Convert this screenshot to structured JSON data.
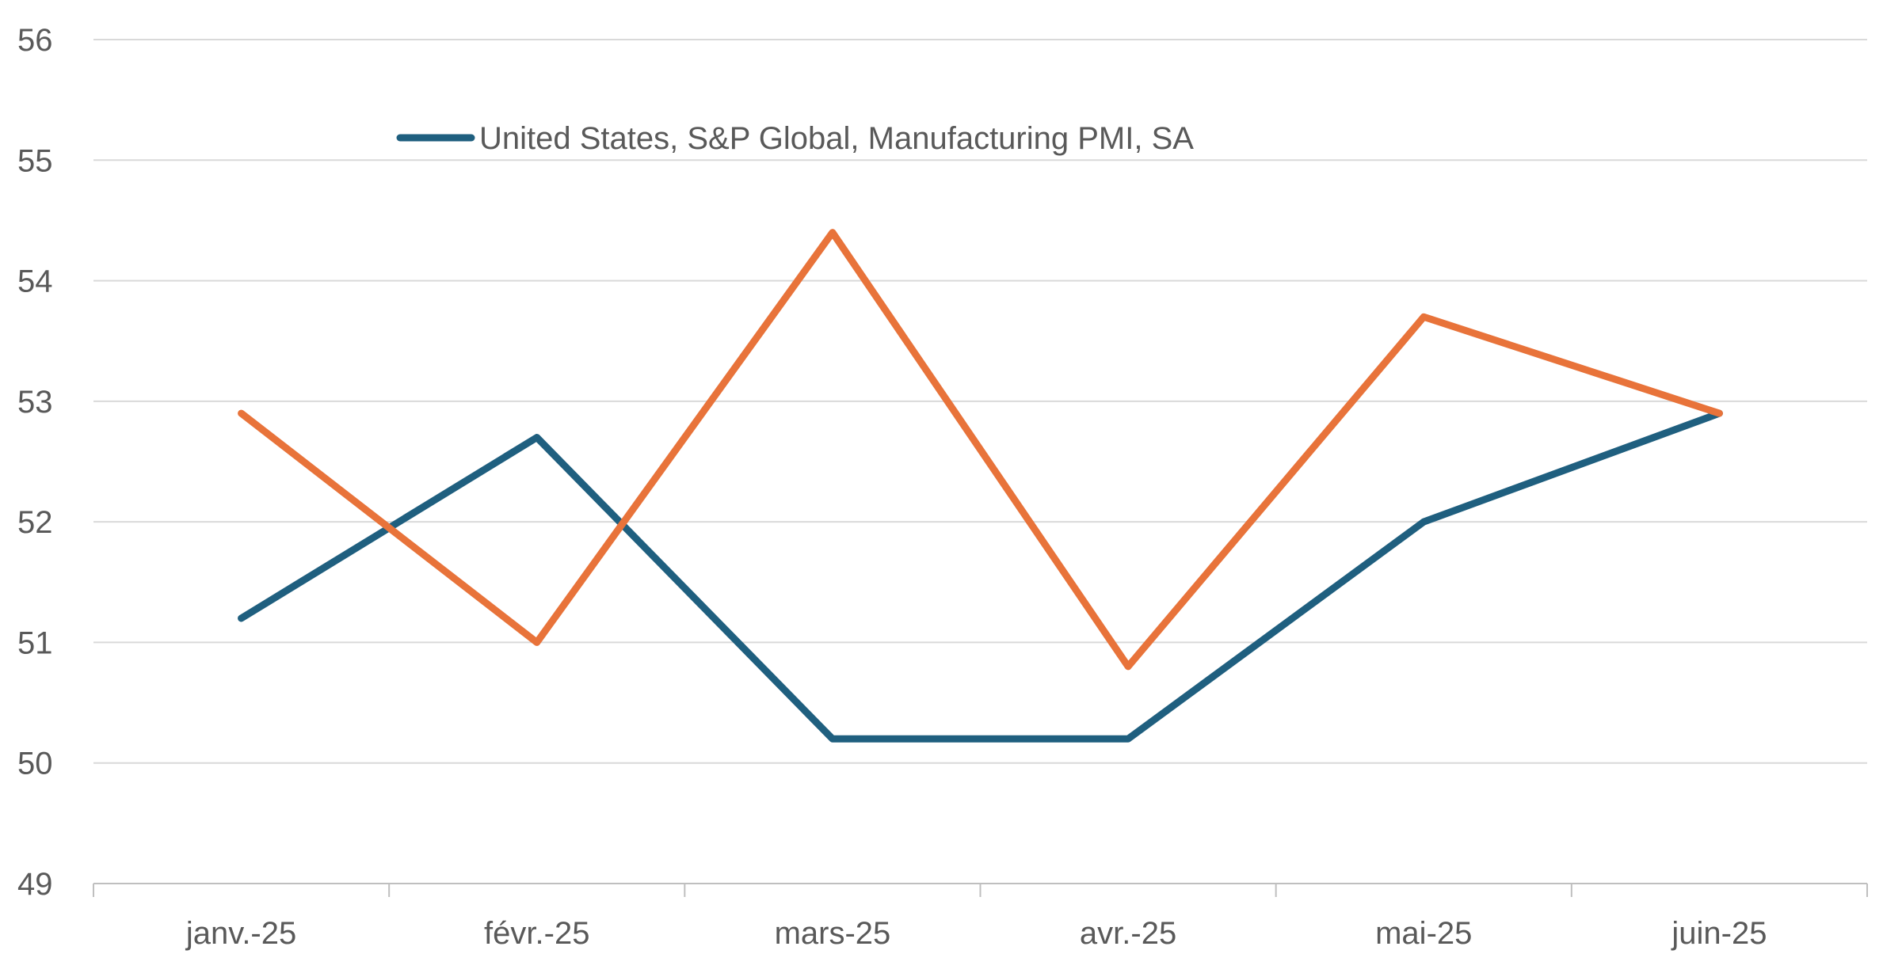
{
  "chart_data": {
    "type": "line",
    "categories": [
      "janv.-25",
      "févr.-25",
      "mars-25",
      "avr.-25",
      "mai-25",
      "juin-25"
    ],
    "series": [
      {
        "name": "United States, S&P Global, Manufacturing PMI, SA",
        "color": "#1f5f7f",
        "values": [
          51.2,
          52.7,
          50.2,
          50.2,
          52.0,
          52.9
        ]
      },
      {
        "name": "",
        "color": "#e8733a",
        "values": [
          52.9,
          51.0,
          54.4,
          50.8,
          53.7,
          52.9
        ]
      }
    ],
    "ylim": [
      49,
      56
    ],
    "yticks": [
      "49",
      "50",
      "51",
      "52",
      "53",
      "54",
      "55",
      "56"
    ],
    "grid": true,
    "legend": "top-left"
  }
}
